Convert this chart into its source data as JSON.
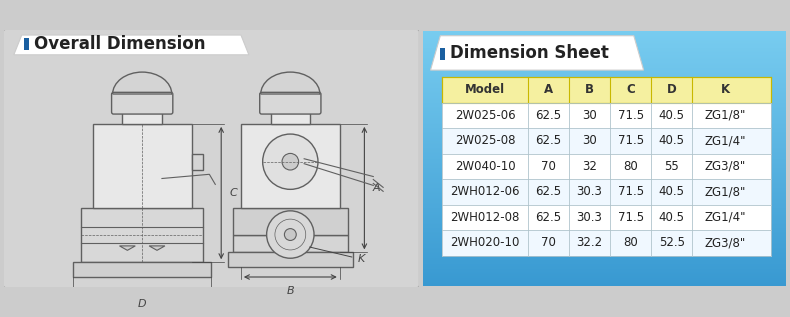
{
  "left_title": "Overall Dimension",
  "right_title": "Dimension Sheet",
  "left_bg": "#d4d4d4",
  "right_bg": "#3aacdc",
  "table_header": [
    "Model",
    "A",
    "B",
    "C",
    "D",
    "K"
  ],
  "table_header_bg": "#f5f0a0",
  "table_rows": [
    [
      "2W025-06",
      "62.5",
      "30",
      "71.5",
      "40.5",
      "ZG1/8\""
    ],
    [
      "2W025-08",
      "62.5",
      "30",
      "71.5",
      "40.5",
      "ZG1/4\""
    ],
    [
      "2W040-10",
      "70",
      "32",
      "80",
      "55",
      "ZG3/8\""
    ],
    [
      "2WH012-06",
      "62.5",
      "30.3",
      "71.5",
      "40.5",
      "ZG1/8\""
    ],
    [
      "2WH012-08",
      "62.5",
      "30.3",
      "71.5",
      "40.5",
      "ZG1/4\""
    ],
    [
      "2WH020-10",
      "70",
      "32.2",
      "80",
      "52.5",
      "ZG3/8\""
    ]
  ],
  "table_row_bg": "#ffffff",
  "table_border_color": "#b0b8c0",
  "title_fontsize": 12,
  "table_fontsize": 8.5,
  "marker_color": "#1a5fa0",
  "line_color": "#606060",
  "valve_fill": "#e8e8e8",
  "dim_color": "#444444"
}
